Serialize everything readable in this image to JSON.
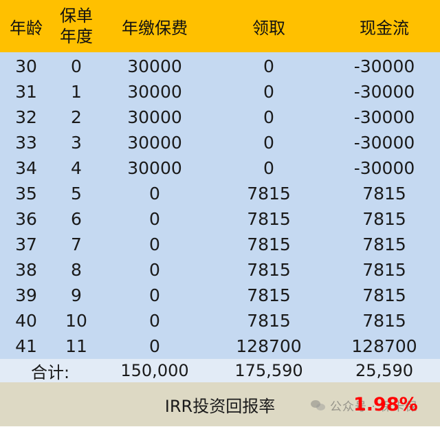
{
  "headers": {
    "age": "年龄",
    "year_line1": "保单",
    "year_line2": "年度",
    "fee": "年缴保费",
    "receive": "领取",
    "cashflow": "现金流"
  },
  "rows": [
    {
      "age": "30",
      "year": "0",
      "fee": "30000",
      "receive": "0",
      "cashflow": "-30000"
    },
    {
      "age": "31",
      "year": "1",
      "fee": "30000",
      "receive": "0",
      "cashflow": "-30000"
    },
    {
      "age": "32",
      "year": "2",
      "fee": "30000",
      "receive": "0",
      "cashflow": "-30000"
    },
    {
      "age": "33",
      "year": "3",
      "fee": "30000",
      "receive": "0",
      "cashflow": "-30000"
    },
    {
      "age": "34",
      "year": "4",
      "fee": "30000",
      "receive": "0",
      "cashflow": "-30000"
    },
    {
      "age": "35",
      "year": "5",
      "fee": "0",
      "receive": "7815",
      "cashflow": "7815"
    },
    {
      "age": "36",
      "year": "6",
      "fee": "0",
      "receive": "7815",
      "cashflow": "7815"
    },
    {
      "age": "37",
      "year": "7",
      "fee": "0",
      "receive": "7815",
      "cashflow": "7815"
    },
    {
      "age": "38",
      "year": "8",
      "fee": "0",
      "receive": "7815",
      "cashflow": "7815"
    },
    {
      "age": "39",
      "year": "9",
      "fee": "0",
      "receive": "7815",
      "cashflow": "7815"
    },
    {
      "age": "40",
      "year": "10",
      "fee": "0",
      "receive": "7815",
      "cashflow": "7815"
    },
    {
      "age": "41",
      "year": "11",
      "fee": "0",
      "receive": "128700",
      "cashflow": "128700"
    }
  ],
  "total": {
    "label": "合计:",
    "fee": "150,000",
    "receive": "175,590",
    "cashflow": "25,590"
  },
  "irr": {
    "label": "IRR投资回报率",
    "value": "1.98%"
  },
  "watermark": {
    "text": "公众号 · 保卡保"
  },
  "colors": {
    "header_bg": "#ffc000",
    "body_bg": "#c5d9f1",
    "total_bg": "#e2ebf6",
    "footer_bg": "#ddd9c4",
    "irr_value": "#ff0000"
  }
}
